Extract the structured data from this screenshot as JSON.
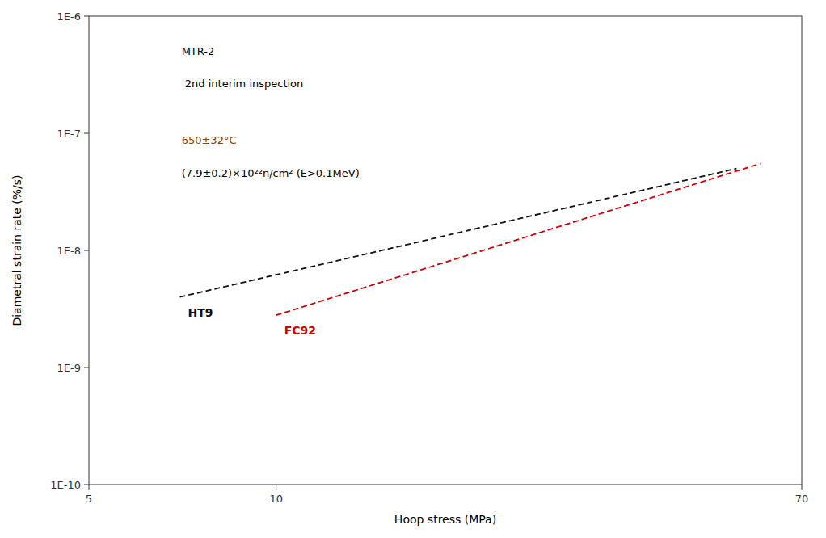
{
  "chart_data": {
    "type": "line",
    "xlabel": "Hoop stress (MPa)",
    "ylabel": "Diametral strain rate (%/s)",
    "log": true,
    "grid": false,
    "xlim": [
      5,
      70
    ],
    "ylim": [
      1e-10,
      1e-06
    ],
    "xticks": [
      5,
      10,
      70
    ],
    "yticks": [
      {
        "value": 1e-10,
        "label": "1E-10"
      },
      {
        "value": 1e-09,
        "label": "1E-9"
      },
      {
        "value": 1e-08,
        "label": "1E-8"
      },
      {
        "value": 1e-07,
        "label": "1E-7"
      },
      {
        "value": 1e-06,
        "label": "1E-6"
      }
    ],
    "series": [
      {
        "name": "HT9",
        "color": "#111111",
        "line_style": "dashed",
        "x": [
          7.0,
          55.0
        ],
        "values": [
          4e-09,
          5e-08
        ]
      },
      {
        "name": "FC92",
        "color": "#cc0000",
        "line_style": "dashed",
        "x": [
          10.0,
          60.0
        ],
        "values": [
          2.8e-09,
          5.5e-08
        ]
      }
    ],
    "annotations": [
      {
        "text": "MTR-2",
        "color": "#000000"
      },
      {
        "text": " 2nd interim inspection",
        "color": "#000000"
      },
      {
        "text": "650±32°C",
        "color": "#8B3A00"
      },
      {
        "text": "(7.9±0.2)×10²²n/cm² (E>0.1MeV)",
        "color": "#000000"
      }
    ]
  }
}
